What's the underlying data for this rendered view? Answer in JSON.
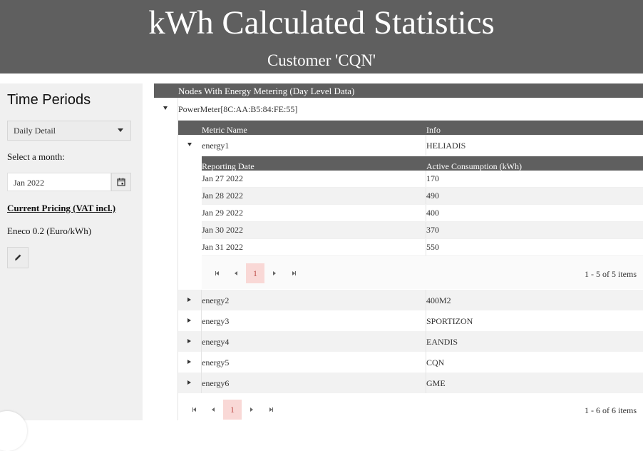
{
  "header": {
    "title": "kWh Calculated Statistics",
    "subtitle": "Customer 'CQN'"
  },
  "sidebar": {
    "title": "Time Periods",
    "period_select": "Daily Detail",
    "month_label": "Select a month:",
    "month_value": "Jan 2022",
    "pricing_heading": "Current Pricing (VAT incl.)",
    "pricing_value": "Eneco 0.2 (Euro/kWh)"
  },
  "grid": {
    "title": "Nodes With Energy Metering (Day Level Data)",
    "node": "PowerMeter[8C:AA:B5:84:FE:55]",
    "metric_columns": [
      "Metric Name",
      "Info"
    ],
    "metrics": [
      {
        "name": "energy1",
        "info": "HELIADIS"
      },
      {
        "name": "energy2",
        "info": "400M2"
      },
      {
        "name": "energy3",
        "info": "SPORTIZON"
      },
      {
        "name": "energy4",
        "info": "EANDIS"
      },
      {
        "name": "energy5",
        "info": "CQN"
      },
      {
        "name": "energy6",
        "info": "GME"
      }
    ],
    "detail_columns": [
      "Reporting Date",
      "Active Consumption (kWh)"
    ],
    "detail_rows": [
      {
        "date": "Jan 27 2022",
        "value": "170"
      },
      {
        "date": "Jan 28 2022",
        "value": "490"
      },
      {
        "date": "Jan 29 2022",
        "value": "400"
      },
      {
        "date": "Jan 30 2022",
        "value": "370"
      },
      {
        "date": "Jan 31 2022",
        "value": "550"
      }
    ],
    "detail_pager": {
      "page": "1",
      "info": "1 - 5 of 5 items"
    },
    "metric_pager": {
      "page": "1",
      "info": "1 - 6 of 6 items"
    }
  },
  "icons": {
    "calendar": "calendar-icon",
    "edit": "pencil-icon",
    "expand": "caret-down-icon",
    "collapse": "caret-right-icon"
  }
}
